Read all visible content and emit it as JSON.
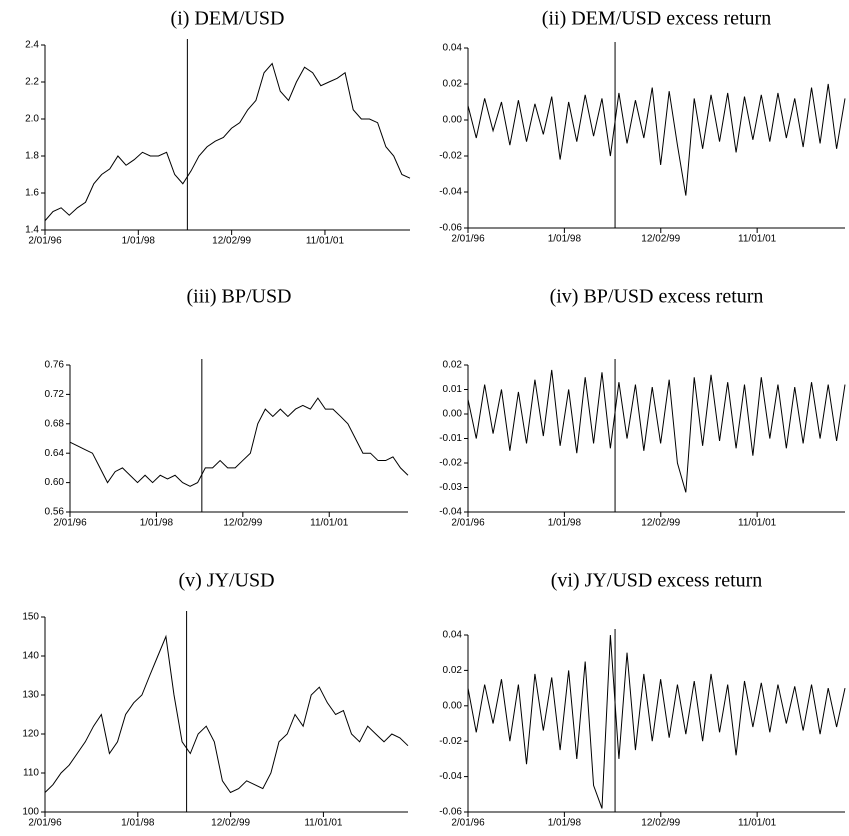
{
  "chart_data": [
    {
      "type": "line",
      "title": "(i) DEM/USD",
      "color": "#000000",
      "x": [
        "2/01/96",
        "4/01/96",
        "6/01/96",
        "8/01/96",
        "10/01/96",
        "12/01/96",
        "2/01/97",
        "4/01/97",
        "6/01/97",
        "8/01/97",
        "10/01/97",
        "12/01/97",
        "2/01/98",
        "4/01/98",
        "6/01/98",
        "8/01/98",
        "10/01/98",
        "12/01/98",
        "2/01/99",
        "4/01/99",
        "6/01/99",
        "8/01/99",
        "10/01/99",
        "12/01/99",
        "2/01/00",
        "4/01/00",
        "6/01/00",
        "8/01/00",
        "10/01/00",
        "12/01/00",
        "2/01/01",
        "4/01/01",
        "6/01/01",
        "8/01/01",
        "10/01/01",
        "12/01/01",
        "2/01/02",
        "4/01/02",
        "6/01/02",
        "8/01/02",
        "10/01/02",
        "12/01/02",
        "2/01/03",
        "4/01/03",
        "6/01/03",
        "8/01/03"
      ],
      "values": [
        1.45,
        1.5,
        1.52,
        1.48,
        1.52,
        1.55,
        1.65,
        1.7,
        1.73,
        1.8,
        1.75,
        1.78,
        1.82,
        1.8,
        1.8,
        1.82,
        1.7,
        1.65,
        1.72,
        1.8,
        1.85,
        1.88,
        1.9,
        1.95,
        1.98,
        2.05,
        2.1,
        2.25,
        2.3,
        2.15,
        2.1,
        2.2,
        2.28,
        2.25,
        2.18,
        2.2,
        2.22,
        2.25,
        2.05,
        2.0,
        2.0,
        1.98,
        1.85,
        1.8,
        1.7,
        1.68
      ],
      "xlim": [
        "2/01/96",
        "8/01/03"
      ],
      "xticks": [
        "2/01/96",
        "1/01/98",
        "12/02/99",
        "11/01/01"
      ],
      "ylim": [
        1.4,
        2.4
      ],
      "yticks": [
        1.4,
        1.6,
        1.8,
        {
          "value": 2.0,
          "label": "2.0"
        },
        2.2,
        2.4
      ],
      "marker_date": "1/04/99"
    },
    {
      "type": "line",
      "title": "(ii) DEM/USD excess return",
      "color": "#000000",
      "x": [
        "2/01/96",
        "4/01/96",
        "6/01/96",
        "8/01/96",
        "10/01/96",
        "12/01/96",
        "2/01/97",
        "4/01/97",
        "6/01/97",
        "8/01/97",
        "10/01/97",
        "12/01/97",
        "2/01/98",
        "4/01/98",
        "6/01/98",
        "8/01/98",
        "10/01/98",
        "12/01/98",
        "2/01/99",
        "4/01/99",
        "6/01/99",
        "8/01/99",
        "10/01/99",
        "12/01/99",
        "2/01/00",
        "4/01/00",
        "6/01/00",
        "8/01/00",
        "10/01/00",
        "12/01/00",
        "2/01/01",
        "4/01/01",
        "6/01/01",
        "8/01/01",
        "10/01/01",
        "12/01/01",
        "2/01/02",
        "4/01/02",
        "6/01/02",
        "8/01/02",
        "10/01/02",
        "12/01/02",
        "2/01/03",
        "4/01/03",
        "6/01/03",
        "8/01/03"
      ],
      "values": [
        0.008,
        -0.01,
        0.012,
        -0.006,
        0.01,
        -0.014,
        0.011,
        -0.012,
        0.009,
        -0.008,
        0.013,
        -0.022,
        0.01,
        -0.012,
        0.014,
        -0.009,
        0.012,
        -0.02,
        0.015,
        -0.013,
        0.011,
        -0.01,
        0.018,
        -0.025,
        0.016,
        -0.014,
        -0.042,
        0.012,
        -0.016,
        0.014,
        -0.012,
        0.015,
        -0.018,
        0.013,
        -0.011,
        0.014,
        -0.012,
        0.015,
        -0.01,
        0.012,
        -0.015,
        0.018,
        -0.013,
        0.02,
        -0.016,
        0.012
      ],
      "xlim": [
        "2/01/96",
        "8/01/03"
      ],
      "xticks": [
        "2/01/96",
        "1/01/98",
        "12/02/99",
        "11/01/01"
      ],
      "ylim": [
        -0.06,
        0.04
      ],
      "yticks": [
        -0.06,
        -0.04,
        -0.02,
        {
          "value": 0,
          "label": "0.00"
        },
        0.02,
        0.04
      ],
      "marker_date": "1/04/99"
    },
    {
      "type": "line",
      "title": "(iii) BP/USD",
      "color": "#000000",
      "x": [
        "2/01/96",
        "4/01/96",
        "6/01/96",
        "8/01/96",
        "10/01/96",
        "12/01/96",
        "2/01/97",
        "4/01/97",
        "6/01/97",
        "8/01/97",
        "10/01/97",
        "12/01/97",
        "2/01/98",
        "4/01/98",
        "6/01/98",
        "8/01/98",
        "10/01/98",
        "12/01/98",
        "2/01/99",
        "4/01/99",
        "6/01/99",
        "8/01/99",
        "10/01/99",
        "12/01/99",
        "2/01/00",
        "4/01/00",
        "6/01/00",
        "8/01/00",
        "10/01/00",
        "12/01/00",
        "2/01/01",
        "4/01/01",
        "6/01/01",
        "8/01/01",
        "10/01/01",
        "12/01/01",
        "2/01/02",
        "4/01/02",
        "6/01/02",
        "8/01/02",
        "10/01/02",
        "12/01/02",
        "2/01/03",
        "4/01/03",
        "6/01/03",
        "8/01/03"
      ],
      "values": [
        0.655,
        0.65,
        0.645,
        0.64,
        0.62,
        0.6,
        0.615,
        0.62,
        0.61,
        0.6,
        0.61,
        0.6,
        0.61,
        0.605,
        0.61,
        0.6,
        0.595,
        0.6,
        0.62,
        0.62,
        0.63,
        0.62,
        0.62,
        0.63,
        0.64,
        0.68,
        0.7,
        0.69,
        0.7,
        0.69,
        0.7,
        0.705,
        0.7,
        0.715,
        0.7,
        0.7,
        0.69,
        0.68,
        0.66,
        0.64,
        0.64,
        0.63,
        0.63,
        0.635,
        0.62,
        0.61
      ],
      "xlim": [
        "2/01/96",
        "8/01/03"
      ],
      "xticks": [
        "2/01/96",
        "1/01/98",
        "12/02/99",
        "11/01/01"
      ],
      "ylim": [
        0.56,
        0.76
      ],
      "yticks": [
        0.56,
        {
          "value": 0.6,
          "label": "0.60"
        },
        0.64,
        0.68,
        0.72,
        0.76
      ],
      "marker_date": "1/04/99"
    },
    {
      "type": "line",
      "title": "(iv) BP/USD excess return",
      "color": "#000000",
      "x": [
        "2/01/96",
        "4/01/96",
        "6/01/96",
        "8/01/96",
        "10/01/96",
        "12/01/96",
        "2/01/97",
        "4/01/97",
        "6/01/97",
        "8/01/97",
        "10/01/97",
        "12/01/97",
        "2/01/98",
        "4/01/98",
        "6/01/98",
        "8/01/98",
        "10/01/98",
        "12/01/98",
        "2/01/99",
        "4/01/99",
        "6/01/99",
        "8/01/99",
        "10/01/99",
        "12/01/99",
        "2/01/00",
        "4/01/00",
        "6/01/00",
        "8/01/00",
        "10/01/00",
        "12/01/00",
        "2/01/01",
        "4/01/01",
        "6/01/01",
        "8/01/01",
        "10/01/01",
        "12/01/01",
        "2/01/02",
        "4/01/02",
        "6/01/02",
        "8/01/02",
        "10/01/02",
        "12/01/02",
        "2/01/03",
        "4/01/03",
        "6/01/03",
        "8/01/03"
      ],
      "values": [
        0.006,
        -0.01,
        0.012,
        -0.008,
        0.01,
        -0.015,
        0.009,
        -0.012,
        0.014,
        -0.009,
        0.018,
        -0.013,
        0.01,
        -0.016,
        0.015,
        -0.012,
        0.017,
        -0.014,
        0.013,
        -0.01,
        0.012,
        -0.015,
        0.011,
        -0.012,
        0.014,
        -0.02,
        -0.032,
        0.015,
        -0.013,
        0.016,
        -0.011,
        0.013,
        -0.014,
        0.012,
        -0.017,
        0.015,
        -0.01,
        0.012,
        -0.014,
        0.011,
        -0.012,
        0.013,
        -0.01,
        0.012,
        -0.011,
        0.012
      ],
      "xlim": [
        "2/01/96",
        "8/01/03"
      ],
      "xticks": [
        "2/01/96",
        "1/01/98",
        "12/02/99",
        "11/01/01"
      ],
      "ylim": [
        -0.04,
        0.02
      ],
      "yticks": [
        -0.04,
        -0.03,
        -0.02,
        -0.01,
        {
          "value": 0,
          "label": "0.00"
        },
        0.01,
        0.02
      ],
      "marker_date": "1/04/99"
    },
    {
      "type": "line",
      "title": "(v) JY/USD",
      "color": "#000000",
      "x": [
        "2/01/96",
        "4/01/96",
        "6/01/96",
        "8/01/96",
        "10/01/96",
        "12/01/96",
        "2/01/97",
        "4/01/97",
        "6/01/97",
        "8/01/97",
        "10/01/97",
        "12/01/97",
        "2/01/98",
        "4/01/98",
        "6/01/98",
        "8/01/98",
        "10/01/98",
        "12/01/98",
        "2/01/99",
        "4/01/99",
        "6/01/99",
        "8/01/99",
        "10/01/99",
        "12/01/99",
        "2/01/00",
        "4/01/00",
        "6/01/00",
        "8/01/00",
        "10/01/00",
        "12/01/00",
        "2/01/01",
        "4/01/01",
        "6/01/01",
        "8/01/01",
        "10/01/01",
        "12/01/01",
        "2/01/02",
        "4/01/02",
        "6/01/02",
        "8/01/02",
        "10/01/02",
        "12/01/02",
        "2/01/03",
        "4/01/03",
        "6/01/03",
        "8/01/03"
      ],
      "values": [
        105,
        107,
        110,
        112,
        115,
        118,
        122,
        125,
        115,
        118,
        125,
        128,
        130,
        135,
        140,
        145,
        130,
        118,
        115,
        120,
        122,
        118,
        108,
        105,
        106,
        108,
        107,
        106,
        110,
        118,
        120,
        125,
        122,
        130,
        132,
        128,
        125,
        126,
        120,
        118,
        122,
        120,
        118,
        120,
        119,
        117
      ],
      "xlim": [
        "2/01/96",
        "8/01/03"
      ],
      "xticks": [
        "2/01/96",
        "1/01/98",
        "12/02/99",
        "11/01/01"
      ],
      "ylim": [
        100,
        150
      ],
      "yticks": [
        100,
        110,
        120,
        130,
        140,
        150
      ],
      "marker_date": "1/04/99"
    },
    {
      "type": "line",
      "title": "(vi) JY/USD excess return",
      "color": "#000000",
      "x": [
        "2/01/96",
        "4/01/96",
        "6/01/96",
        "8/01/96",
        "10/01/96",
        "12/01/96",
        "2/01/97",
        "4/01/97",
        "6/01/97",
        "8/01/97",
        "10/01/97",
        "12/01/97",
        "2/01/98",
        "4/01/98",
        "6/01/98",
        "8/01/98",
        "10/01/98",
        "12/01/98",
        "2/01/99",
        "4/01/99",
        "6/01/99",
        "8/01/99",
        "10/01/99",
        "12/01/99",
        "2/01/00",
        "4/01/00",
        "6/01/00",
        "8/01/00",
        "10/01/00",
        "12/01/00",
        "2/01/01",
        "4/01/01",
        "6/01/01",
        "8/01/01",
        "10/01/01",
        "12/01/01",
        "2/01/02",
        "4/01/02",
        "6/01/02",
        "8/01/02",
        "10/01/02",
        "12/01/02",
        "2/01/03",
        "4/01/03",
        "6/01/03",
        "8/01/03"
      ],
      "values": [
        0.01,
        -0.015,
        0.012,
        -0.01,
        0.015,
        -0.02,
        0.012,
        -0.033,
        0.018,
        -0.014,
        0.016,
        -0.025,
        0.02,
        -0.03,
        0.025,
        -0.045,
        -0.058,
        0.04,
        -0.03,
        0.03,
        -0.025,
        0.018,
        -0.02,
        0.015,
        -0.018,
        0.012,
        -0.016,
        0.014,
        -0.02,
        0.018,
        -0.015,
        0.012,
        -0.028,
        0.014,
        -0.012,
        0.013,
        -0.015,
        0.012,
        -0.01,
        0.011,
        -0.014,
        0.012,
        -0.016,
        0.01,
        -0.012,
        0.01
      ],
      "xlim": [
        "2/01/96",
        "8/01/03"
      ],
      "xticks": [
        "2/01/96",
        "1/01/98",
        "12/02/99",
        "11/01/01"
      ],
      "ylim": [
        -0.06,
        0.04
      ],
      "yticks": [
        -0.06,
        -0.04,
        -0.02,
        {
          "value": 0,
          "label": "0.00"
        },
        0.02,
        0.04
      ],
      "marker_date": "1/04/99"
    }
  ]
}
